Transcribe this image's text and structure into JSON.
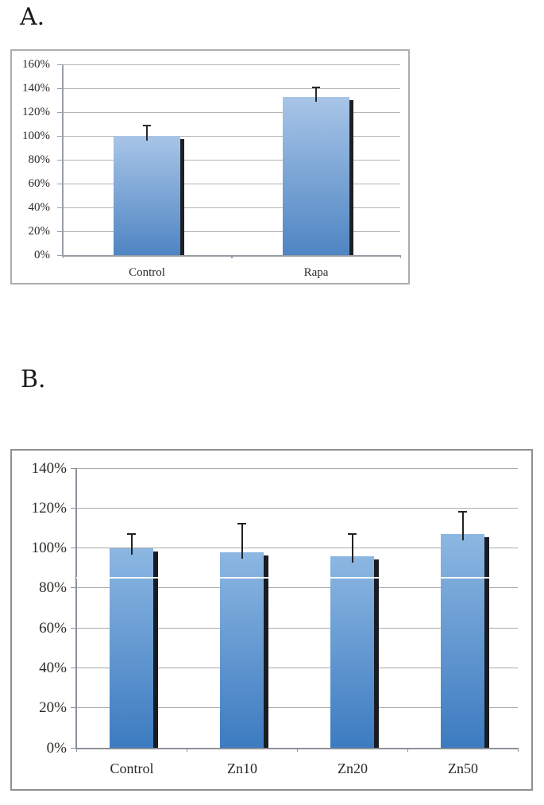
{
  "panel_labels": [
    "A.",
    "B."
  ],
  "chart_data": [
    {
      "type": "bar",
      "panel": "A",
      "title": "",
      "xlabel": "",
      "ylabel": "",
      "categories": [
        "Control",
        "Rapa"
      ],
      "values": [
        100,
        133
      ],
      "error_tops": [
        109,
        141
      ],
      "errors_plus": [
        9,
        8
      ],
      "ylim": [
        0,
        160
      ],
      "ytick_step": 20,
      "ytick_values": [
        0,
        20,
        40,
        60,
        80,
        100,
        120,
        140,
        160
      ],
      "ytick_labels": [
        "0%",
        "20%",
        "40%",
        "60%",
        "80%",
        "100%",
        "120%",
        "140%",
        "160%"
      ],
      "grid": true,
      "legend": false,
      "colors": {
        "bar_top": "#a8c5e7",
        "bar_bottom": "#4f85c3",
        "bar_shadow": "#1d2026",
        "gridline": "#b5b5b5",
        "axis": "#989ea6",
        "error_bar": "#2a2a2a",
        "text": "#2d2a26",
        "frame": "#adadad"
      }
    },
    {
      "type": "bar",
      "panel": "B",
      "title": "",
      "xlabel": "",
      "ylabel": "",
      "categories": [
        "Control",
        "Zn10",
        "Zn20",
        "Zn50"
      ],
      "values": [
        100,
        98,
        96,
        107
      ],
      "error_tops": [
        107,
        112,
        107,
        118
      ],
      "errors_plus": [
        7,
        14,
        11,
        11
      ],
      "ylim": [
        0,
        140
      ],
      "ytick_step": 20,
      "ytick_values": [
        0,
        20,
        40,
        60,
        80,
        100,
        120,
        140
      ],
      "ytick_labels": [
        "0%",
        "20%",
        "40%",
        "60%",
        "80%",
        "100%",
        "120%",
        "140%"
      ],
      "grid": true,
      "legend": false,
      "artifact_line_value": 85,
      "colors": {
        "bar_top": "#8cb7e2",
        "bar_bottom": "#3c7bc0",
        "bar_shadow": "#191c22",
        "gridline": "#a9a9a9",
        "axis": "#8b9199",
        "error_bar": "#222222",
        "text": "#2d2a26",
        "frame": "#8f8f8f",
        "artifact_line": "#ffffff"
      }
    }
  ]
}
